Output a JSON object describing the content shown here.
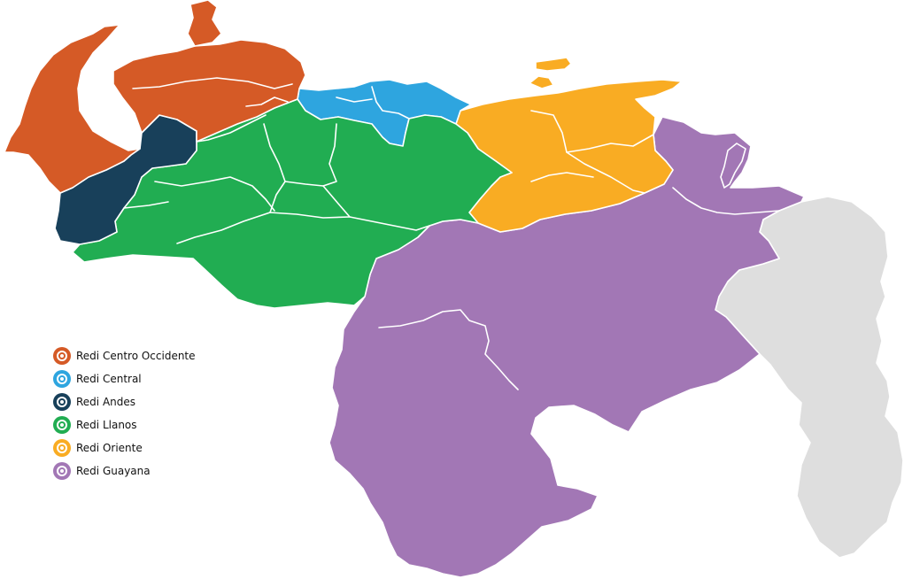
{
  "legend": {
    "items": [
      {
        "label": "Redi Centro Occidente",
        "color": "#d55a26"
      },
      {
        "label": "Redi Central",
        "color": "#2ea5df"
      },
      {
        "label": "Redi Andes",
        "color": "#18405a"
      },
      {
        "label": "Redi Llanos",
        "color": "#21ad52"
      },
      {
        "label": "Redi Oriente",
        "color": "#f9ac23"
      },
      {
        "label": "Redi Guayana",
        "color": "#a277b5"
      }
    ]
  },
  "regions": {
    "centro_occidente": {
      "color": "#d55a26"
    },
    "central": {
      "color": "#2ea5df"
    },
    "andes": {
      "color": "#18405a"
    },
    "llanos": {
      "color": "#21ad52"
    },
    "oriente": {
      "color": "#f9ac23"
    },
    "guayana": {
      "color": "#a277b5"
    },
    "disputed": {
      "color": "#dedede"
    }
  }
}
